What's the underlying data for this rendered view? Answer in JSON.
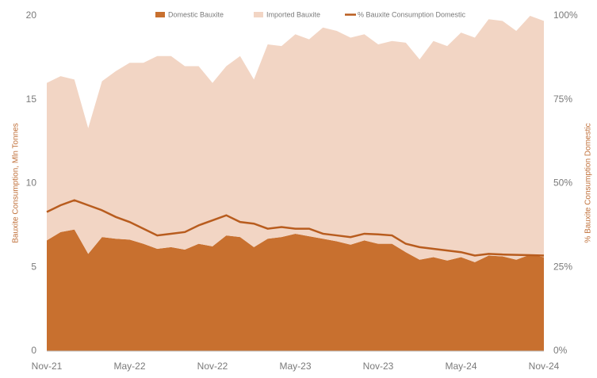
{
  "chart_data": {
    "type": "stacked-area-line",
    "y_label": "Bauxite Consumption, Mln Tonnes",
    "y2_label": "% Bauxite Consumption Domestic",
    "categories": [
      "Nov-21",
      null,
      null,
      null,
      null,
      null,
      "May-22",
      null,
      null,
      null,
      null,
      null,
      "Nov-22",
      null,
      null,
      null,
      null,
      null,
      "May-23",
      null,
      null,
      null,
      null,
      null,
      "Nov-23",
      null,
      null,
      null,
      null,
      null,
      "May-24",
      null,
      null,
      null,
      null,
      null,
      "Nov-24"
    ],
    "ylim": [
      0,
      20
    ],
    "yticks": [
      0,
      5,
      10,
      15,
      20
    ],
    "y2lim": [
      0,
      100
    ],
    "y2ticks": [
      {
        "value": 0,
        "label": "0%"
      },
      {
        "value": 25,
        "label": "25%"
      },
      {
        "value": 50,
        "label": "50%"
      },
      {
        "value": 75,
        "label": "75%"
      },
      {
        "value": 100,
        "label": "100%"
      }
    ],
    "series": [
      {
        "name": "Domestic Bauxite",
        "color": "#c8702f",
        "kind": "area",
        "values": [
          6.6,
          7.1,
          7.25,
          5.8,
          6.8,
          6.7,
          6.65,
          6.4,
          6.1,
          6.2,
          6.05,
          6.4,
          6.25,
          6.9,
          6.8,
          6.2,
          6.7,
          6.8,
          7.0,
          6.85,
          6.7,
          6.55,
          6.35,
          6.6,
          6.4,
          6.4,
          5.9,
          5.45,
          5.6,
          5.4,
          5.6,
          5.3,
          5.7,
          5.65,
          5.45,
          5.75,
          5.6
        ]
      },
      {
        "name": "Imported Bauxite",
        "color": "#f2d5c4",
        "kind": "area",
        "values": [
          9.4,
          9.3,
          8.95,
          7.5,
          9.3,
          10.0,
          10.55,
          10.8,
          11.5,
          11.4,
          10.95,
          10.6,
          9.75,
          10.1,
          10.8,
          10.0,
          11.6,
          11.4,
          11.9,
          11.75,
          12.6,
          12.55,
          12.35,
          12.3,
          11.9,
          12.1,
          12.5,
          11.95,
          12.9,
          12.8,
          13.4,
          13.4,
          14.1,
          14.05,
          13.65,
          14.25,
          14.1
        ]
      },
      {
        "name": "% Bauxite Consumption Domestic",
        "color": "#b85c1e",
        "kind": "line",
        "axis": "y2",
        "values": [
          41.5,
          43.5,
          45,
          43.5,
          42,
          40,
          38.5,
          36.5,
          34.5,
          35,
          35.5,
          37.5,
          39,
          40.5,
          38.5,
          38,
          36.5,
          37,
          36.5,
          36.5,
          35,
          34.5,
          34,
          35,
          34.8,
          34.5,
          32,
          31,
          30.5,
          30,
          29.5,
          28.5,
          29,
          28.8,
          28.7,
          28.6,
          28.5
        ]
      }
    ]
  }
}
